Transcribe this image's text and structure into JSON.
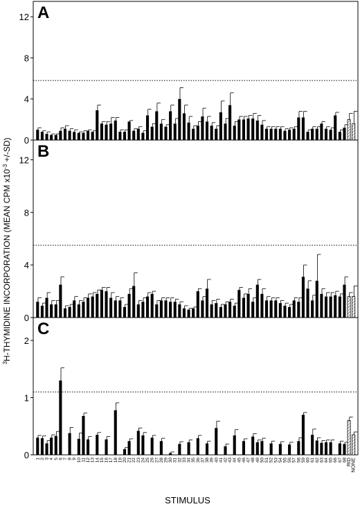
{
  "figure": {
    "ylabel_pre": "H-THYMIDINE INCORPORATION (MEAN CPM x10",
    "ylabel_sup3": "3",
    "ylabel_exp": "-3",
    "ylabel_post": " +/-SD)",
    "xlabel": "STIMULUS"
  },
  "categories": [
    "1",
    "2",
    "3",
    "4",
    "5",
    "6",
    "7",
    "8",
    "9",
    "10",
    "11",
    "12",
    "13",
    "14",
    "15",
    "16",
    "17",
    "18",
    "19",
    "20",
    "21",
    "22",
    "23",
    "24",
    "25",
    "26",
    "27",
    "28",
    "29",
    "30",
    "31",
    "32",
    "33",
    "34",
    "35",
    "36",
    "37",
    "38",
    "39",
    "40",
    "41",
    "42",
    "43",
    "44",
    "45",
    "46",
    "47",
    "48",
    "49",
    "50",
    "51",
    "52",
    "53",
    "54",
    "55",
    "56",
    "57",
    "58",
    "59",
    "60",
    "61",
    "62",
    "63",
    "64",
    "65",
    "66",
    "67",
    "68"
  ],
  "control_categories": [
    "RID",
    "NONE"
  ],
  "chart_data": [
    {
      "type": "bar",
      "panel_label": "A",
      "ylim": [
        0,
        13.5
      ],
      "yticks": [
        0,
        4,
        8,
        12
      ],
      "threshold": 5.8,
      "values": [
        1.0,
        0.8,
        0.6,
        0.5,
        0.5,
        0.9,
        1.1,
        0.9,
        0.8,
        0.7,
        0.7,
        0.9,
        0.8,
        2.9,
        1.6,
        1.5,
        1.6,
        1.9,
        0.8,
        0.8,
        1.8,
        0.9,
        1.1,
        0.7,
        2.4,
        1.3,
        2.8,
        1.6,
        1.3,
        2.8,
        1.6,
        4.0,
        2.6,
        1.7,
        1.1,
        1.4,
        2.3,
        1.8,
        1.4,
        1.1,
        2.7,
        1.6,
        3.4,
        1.4,
        2.0,
        2.0,
        2.1,
        2.1,
        1.9,
        1.5,
        1.1,
        1.1,
        1.1,
        1.1,
        0.9,
        1.0,
        1.1,
        2.2,
        2.2,
        0.8,
        1.1,
        1.1,
        1.6,
        1.1,
        1.0,
        2.4,
        0.8,
        1.2
      ],
      "errors": [
        0.2,
        0.1,
        0.2,
        0.1,
        0.1,
        0.3,
        0.3,
        0.2,
        0.2,
        0.1,
        0.2,
        0.1,
        0.1,
        0.5,
        0.2,
        0.3,
        0.6,
        0.3,
        0.2,
        0.2,
        0.1,
        0.2,
        0.2,
        0.2,
        0.6,
        0.3,
        0.8,
        0.4,
        0.2,
        0.6,
        0.5,
        1.1,
        0.8,
        0.6,
        0.3,
        0.4,
        0.8,
        0.5,
        0.3,
        0.3,
        1.1,
        0.5,
        1.2,
        0.4,
        0.3,
        0.3,
        0.3,
        0.5,
        0.5,
        0.4,
        0.2,
        0.2,
        0.2,
        0.2,
        0.2,
        0.2,
        0.2,
        0.6,
        0.6,
        0.2,
        0.2,
        0.2,
        0.2,
        0.2,
        0.2,
        0.3,
        0.2,
        0.3
      ],
      "controls": [
        {
          "name": "RID",
          "value": 2.0,
          "error": 0.6
        },
        {
          "name": "NONE",
          "value": 1.6,
          "error": 1.2
        }
      ]
    },
    {
      "type": "bar",
      "panel_label": "B",
      "ylim": [
        0,
        13.5
      ],
      "yticks": [
        0,
        4,
        8,
        12
      ],
      "threshold": 5.5,
      "values": [
        1.2,
        0.9,
        1.5,
        1.0,
        1.0,
        2.5,
        0.7,
        0.8,
        1.3,
        1.0,
        1.2,
        1.5,
        1.6,
        1.8,
        2.1,
        2.0,
        1.5,
        1.3,
        1.3,
        0.8,
        1.8,
        2.4,
        1.0,
        1.2,
        1.6,
        1.8,
        1.0,
        1.3,
        1.3,
        1.2,
        1.2,
        1.0,
        0.7,
        0.6,
        0.7,
        2.0,
        1.3,
        2.2,
        1.0,
        1.1,
        0.8,
        1.0,
        1.2,
        0.9,
        2.1,
        1.5,
        1.8,
        1.2,
        2.5,
        1.8,
        1.3,
        1.3,
        1.3,
        1.1,
        0.9,
        0.8,
        1.3,
        1.2,
        3.1,
        2.2,
        1.3,
        2.8,
        1.8,
        1.6,
        1.6,
        1.7,
        1.6,
        2.5
      ],
      "errors": [
        0.3,
        0.2,
        0.4,
        0.3,
        0.3,
        0.6,
        0.2,
        0.2,
        0.3,
        0.3,
        0.3,
        0.3,
        0.3,
        0.3,
        0.2,
        0.3,
        0.4,
        0.3,
        0.2,
        0.2,
        0.4,
        1.0,
        0.3,
        0.3,
        0.3,
        0.2,
        0.3,
        0.2,
        0.2,
        0.3,
        0.2,
        0.2,
        0.2,
        0.1,
        0.1,
        0.2,
        0.3,
        0.7,
        0.3,
        0.3,
        0.2,
        0.2,
        0.2,
        0.2,
        0.2,
        0.3,
        0.4,
        0.3,
        0.4,
        0.4,
        0.3,
        0.2,
        0.2,
        0.2,
        0.2,
        0.2,
        0.2,
        0.3,
        0.9,
        0.6,
        0.4,
        2.0,
        0.4,
        0.3,
        0.3,
        0.3,
        0.2,
        0.6
      ],
      "controls": [
        {
          "name": "RID",
          "value": 1.6,
          "error": 0.3
        },
        {
          "name": "NONE",
          "value": 1.6,
          "error": 0.8
        }
      ]
    },
    {
      "type": "bar",
      "panel_label": "C",
      "ylim": [
        0,
        2.4
      ],
      "yticks": [
        0,
        1,
        2
      ],
      "threshold": 1.1,
      "values": [
        0.3,
        0.29,
        0.2,
        0.3,
        0.33,
        1.3,
        0.0,
        0.38,
        0.0,
        0.28,
        0.68,
        0.27,
        0.0,
        0.35,
        0.0,
        0.27,
        0.0,
        0.78,
        0.0,
        0.1,
        0.24,
        0.0,
        0.42,
        0.34,
        0.0,
        0.3,
        0.0,
        0.24,
        0.0,
        0.03,
        0.0,
        0.19,
        0.0,
        0.22,
        0.0,
        0.29,
        0.0,
        0.2,
        0.0,
        0.47,
        0.0,
        0.15,
        0.0,
        0.34,
        0.0,
        0.24,
        0.0,
        0.32,
        0.22,
        0.24,
        0.0,
        0.2,
        0.0,
        0.19,
        0.0,
        0.18,
        0.0,
        0.24,
        0.7,
        0.0,
        0.35,
        0.25,
        0.21,
        0.22,
        0.22,
        0.0,
        0.2,
        0.19
      ],
      "errors": [
        0.04,
        0.04,
        0.05,
        0.05,
        0.08,
        0.22,
        0.0,
        0.1,
        0.0,
        0.1,
        0.05,
        0.05,
        0.0,
        0.04,
        0.0,
        0.05,
        0.0,
        0.13,
        0.0,
        0.03,
        0.04,
        0.0,
        0.05,
        0.05,
        0.0,
        0.04,
        0.0,
        0.05,
        0.0,
        0.02,
        0.0,
        0.04,
        0.0,
        0.04,
        0.0,
        0.05,
        0.0,
        0.04,
        0.0,
        0.12,
        0.0,
        0.04,
        0.0,
        0.1,
        0.0,
        0.04,
        0.0,
        0.05,
        0.04,
        0.05,
        0.0,
        0.04,
        0.0,
        0.04,
        0.0,
        0.04,
        0.0,
        0.06,
        0.04,
        0.0,
        0.1,
        0.05,
        0.04,
        0.04,
        0.04,
        0.0,
        0.04,
        0.03
      ],
      "controls": [
        {
          "name": "RID",
          "value": 0.6,
          "error": 0.06
        },
        {
          "name": "NONE",
          "value": 0.35,
          "error": 0.05
        }
      ]
    }
  ]
}
